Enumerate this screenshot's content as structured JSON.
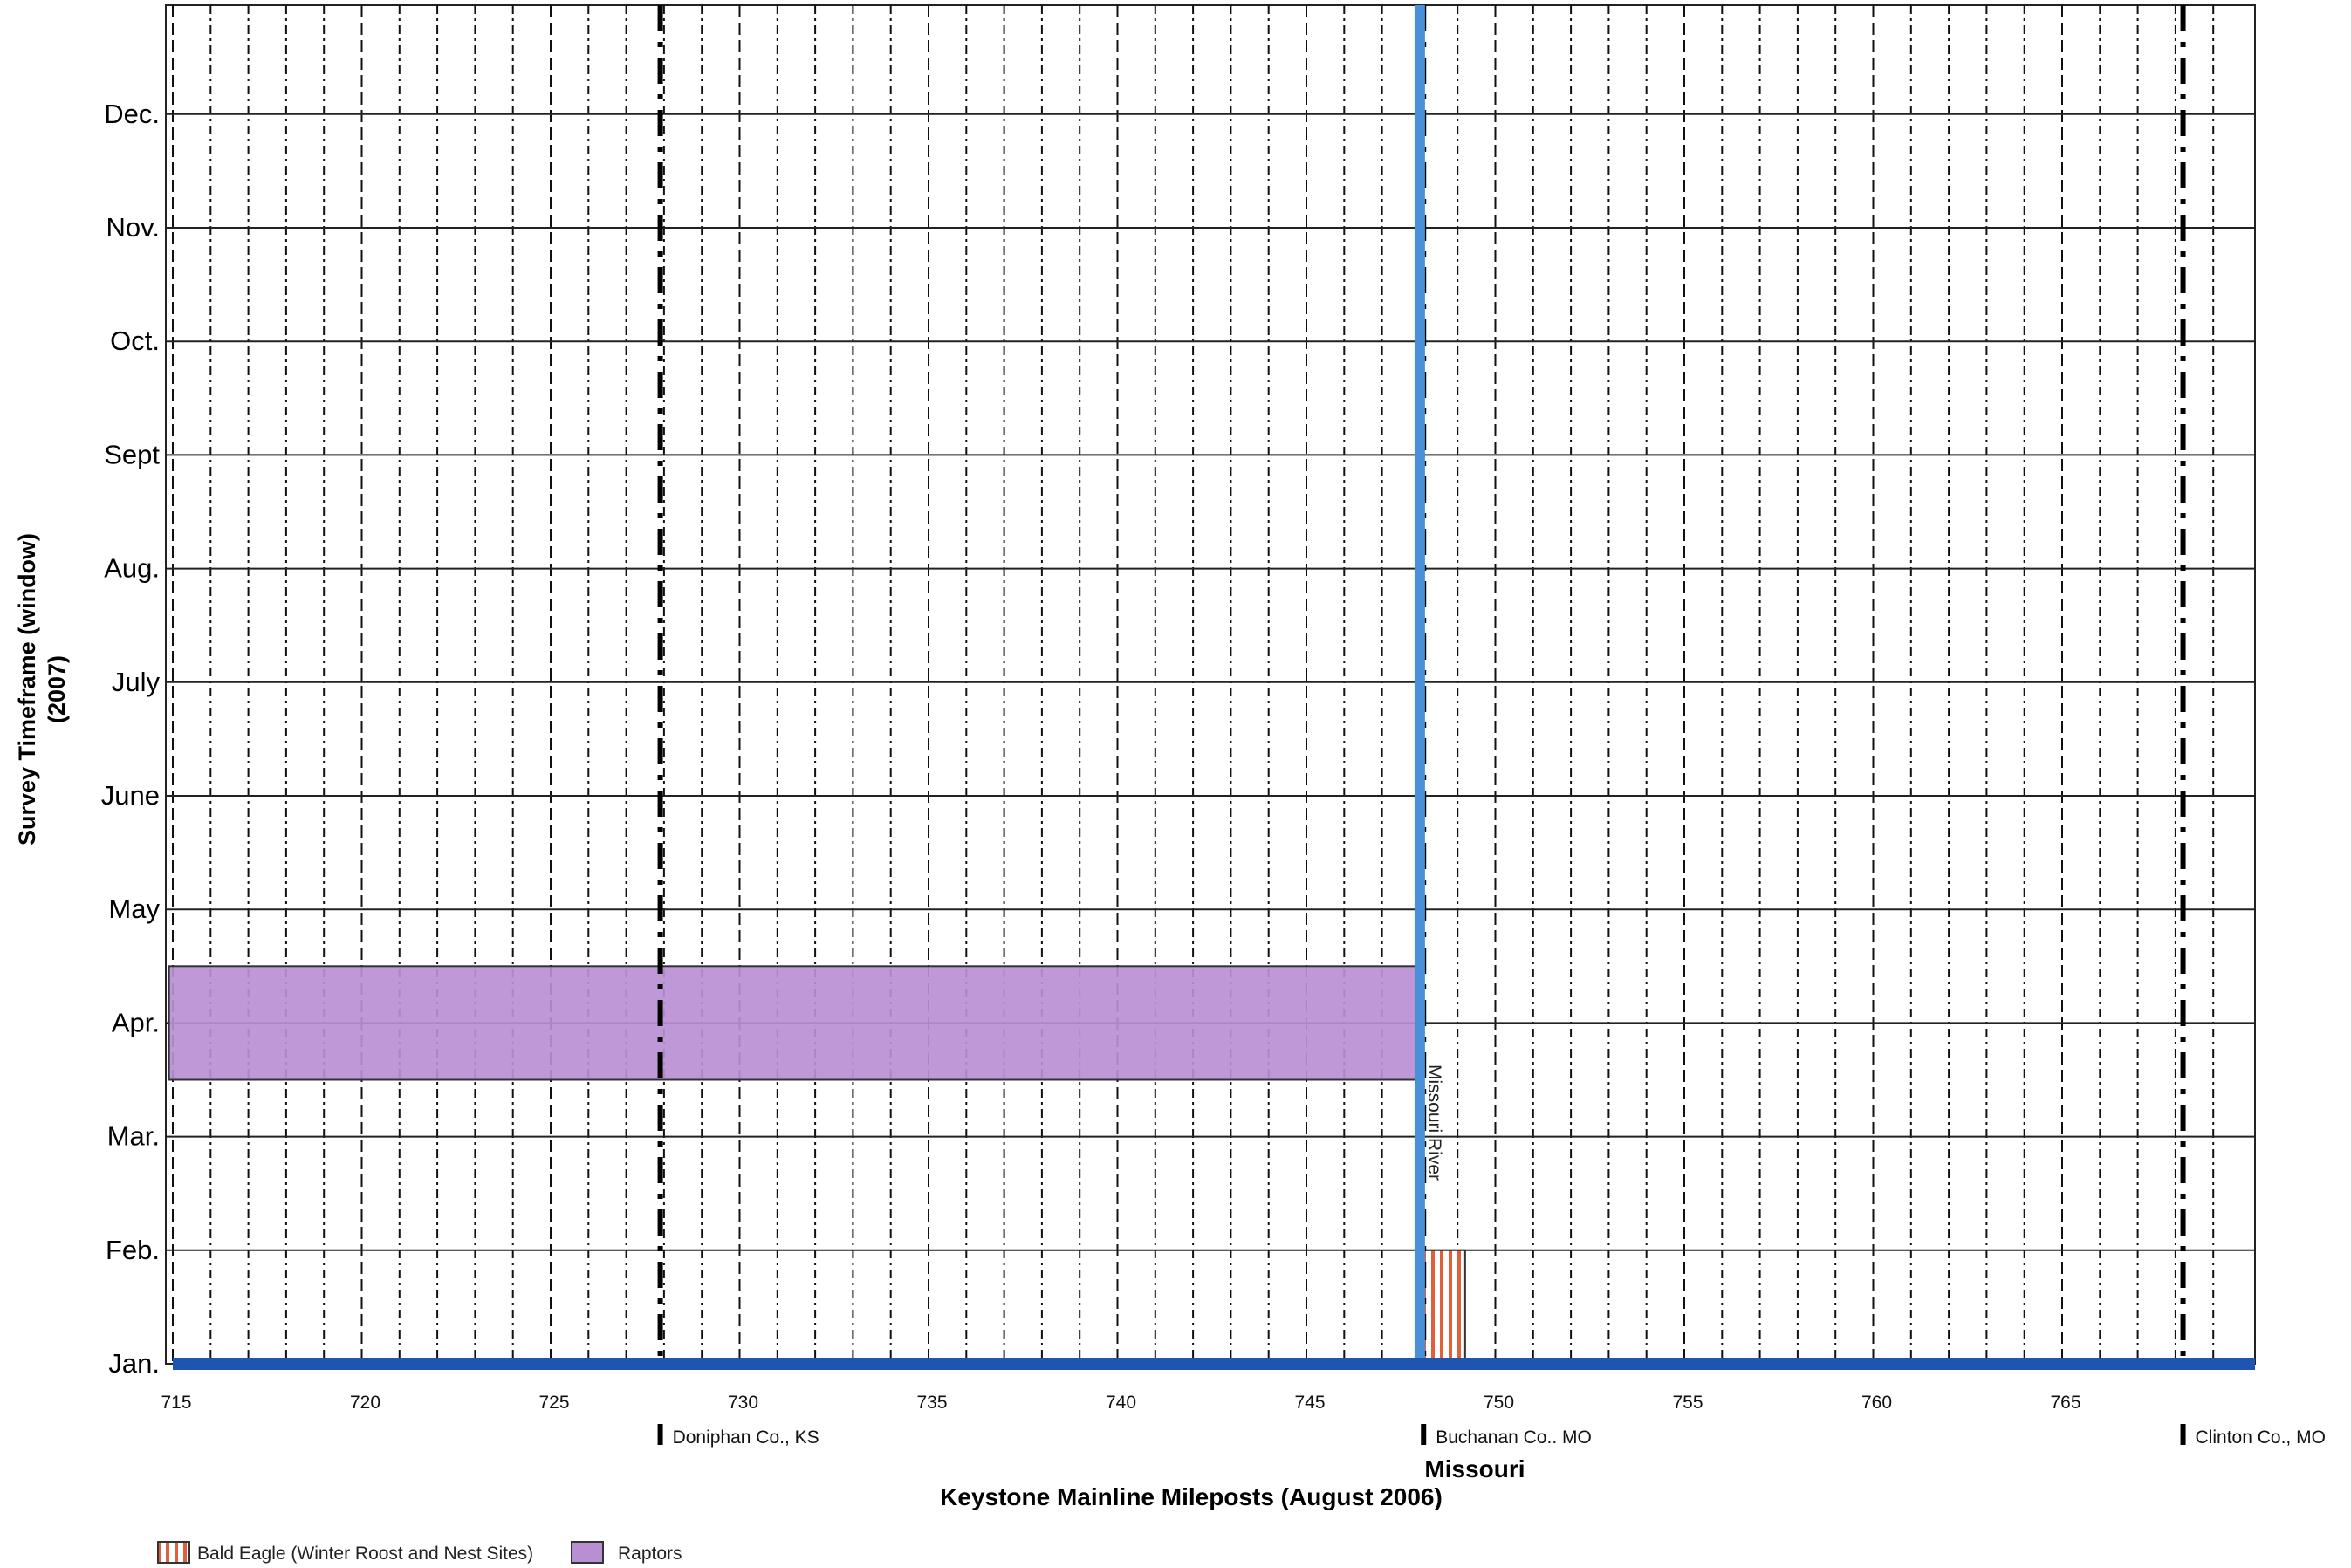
{
  "chart_data": {
    "type": "bar",
    "orientation": "horizontal-range",
    "title": "",
    "xlabel": "Keystone Mainline Mileposts (August 2006)",
    "ylabel": "Survey Timeframe (window)",
    "ylabel_sub": "(2007)",
    "state_label": "Missouri",
    "xlim": [
      715,
      770
    ],
    "x_ticks": [
      715,
      720,
      725,
      730,
      735,
      740,
      745,
      750,
      755,
      760,
      765
    ],
    "x_tick_labels": [
      "715",
      "720",
      "725",
      "730",
      "735",
      "740",
      "745",
      "750",
      "755",
      "760",
      "765"
    ],
    "months": [
      "Jan.",
      "Feb.",
      "Mar.",
      "Apr.",
      "May",
      "June",
      "July",
      "Aug.",
      "Sept",
      "Oct.",
      "Nov.",
      "Dec."
    ],
    "grid": true,
    "series": [
      {
        "name": "Bald Eagle (Winter Roost and Nest Sites)",
        "x_start": 748.0,
        "x_end": 749.2,
        "month_start": 1,
        "month_end": 2,
        "color": "#e0603c",
        "pattern": "vertical-stripes"
      },
      {
        "name": "Raptors",
        "x_start": 714.9,
        "x_end": 748.1,
        "month_start": 3.5,
        "month_end": 4.5,
        "color": "#b98fd4",
        "pattern": "solid"
      }
    ],
    "features": [
      {
        "label": "Missouri River",
        "x": 748.0,
        "color": "#4a90d9",
        "type": "river"
      }
    ],
    "county_boundaries": [
      {
        "label": "Doniphan Co., KS",
        "x": 727.9
      },
      {
        "label": "Buchanan Co.. MO",
        "x": 748.1
      },
      {
        "label": "Clinton Co., MO",
        "x": 768.2
      }
    ],
    "legend_position": "bottom-left",
    "baseline_color": "#1f55b0"
  }
}
